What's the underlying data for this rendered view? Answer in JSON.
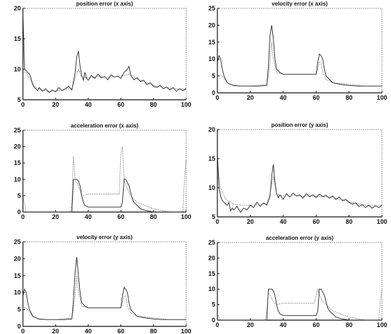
{
  "chart_data": [
    {
      "type": "line",
      "title": "position error  (x axis)",
      "xlim": [
        0,
        100
      ],
      "ylim": [
        5,
        20
      ],
      "xticks": [
        "0",
        "20",
        "40",
        "60",
        "80",
        "100"
      ],
      "yticks": [
        "5",
        "10",
        "15",
        "20"
      ],
      "series": [
        {
          "style": "solid",
          "color": "#222222",
          "x": [
            0,
            1,
            2,
            3,
            4,
            5,
            6,
            7,
            8,
            9,
            10,
            12,
            14,
            16,
            18,
            20,
            22,
            24,
            26,
            28,
            30,
            31,
            32,
            33,
            34,
            35,
            36,
            37,
            38,
            39,
            40,
            42,
            44,
            46,
            48,
            50,
            52,
            54,
            56,
            58,
            60,
            62,
            64,
            65,
            66,
            68,
            70,
            72,
            74,
            76,
            78,
            80,
            82,
            84,
            86,
            88,
            90,
            92,
            94,
            96,
            98,
            100
          ],
          "y": [
            19,
            10,
            9.8,
            9.5,
            9.2,
            8.5,
            7.5,
            7,
            6.8,
            6.5,
            7,
            6.4,
            6.8,
            6.2,
            6.6,
            6.3,
            7,
            6.5,
            6.8,
            7.2,
            6.6,
            8,
            9.5,
            12,
            13,
            10.5,
            9,
            8.2,
            9.5,
            8.5,
            8.2,
            9,
            8.5,
            9.2,
            8.6,
            8.8,
            8.3,
            9.1,
            8.7,
            8.9,
            8.5,
            9.5,
            10,
            10.5,
            9,
            8.3,
            8.6,
            8,
            8.2,
            7.5,
            7.8,
            7.2,
            7,
            7.4,
            6.8,
            7.1,
            6.6,
            7,
            6.4,
            6.8,
            6.5,
            6.8
          ]
        },
        {
          "style": "dotted",
          "color": "#444444",
          "x": [
            0,
            2,
            5,
            8,
            12,
            16,
            20,
            24,
            28,
            30,
            32,
            34,
            36,
            40,
            46,
            52,
            58,
            62,
            66,
            70,
            76,
            82,
            88,
            94,
            100
          ],
          "y": [
            9.5,
            9.5,
            8,
            7,
            6.6,
            6.4,
            6.5,
            6.6,
            6.8,
            6.8,
            8.5,
            10,
            8.8,
            8.6,
            8.8,
            8.7,
            8.8,
            9,
            9.2,
            8.4,
            7.8,
            7.2,
            7,
            6.8,
            6.8
          ]
        }
      ]
    },
    {
      "type": "line",
      "title": "velocity error  (x axis)",
      "xlim": [
        0,
        100
      ],
      "ylim": [
        0,
        25
      ],
      "xticks": [
        "0",
        "20",
        "40",
        "60",
        "80",
        "100"
      ],
      "yticks": [
        "0",
        "5",
        "10",
        "15",
        "20",
        "25"
      ],
      "series": [
        {
          "style": "solid",
          "color": "#222222",
          "x": [
            0,
            1,
            2,
            3,
            4,
            5,
            6,
            8,
            10,
            15,
            20,
            25,
            30,
            31,
            32,
            33,
            34,
            35,
            36,
            38,
            40,
            45,
            50,
            55,
            60,
            61,
            62,
            63,
            64,
            65,
            66,
            68,
            70,
            75,
            80,
            85,
            90,
            95,
            100
          ],
          "y": [
            9,
            11,
            10,
            7,
            5,
            4,
            3,
            2.5,
            2.2,
            2,
            2,
            2,
            2.2,
            8,
            17,
            20,
            16,
            10,
            7,
            6,
            5.5,
            5.5,
            5.5,
            5.5,
            5.5,
            9,
            11.5,
            11,
            10,
            7,
            5,
            4,
            3,
            2.5,
            2.2,
            2,
            2,
            2,
            2
          ]
        },
        {
          "style": "dotted",
          "color": "#444444",
          "x": [
            0,
            3,
            6,
            10,
            20,
            30,
            31,
            32,
            33,
            34,
            36,
            40,
            50,
            60,
            61,
            62,
            63,
            64,
            66,
            70,
            80,
            90,
            100
          ],
          "y": [
            5,
            5,
            3,
            2,
            2,
            2.5,
            5,
            9,
            15,
            10,
            6,
            5.5,
            5.5,
            5.5,
            7,
            9,
            9,
            6,
            4,
            3,
            2.5,
            2,
            2
          ]
        }
      ]
    },
    {
      "type": "line",
      "title": "acceleration error  (x axis)",
      "xlim": [
        0,
        100
      ],
      "ylim": [
        0,
        25
      ],
      "xticks": [
        "0",
        "20",
        "40",
        "60",
        "80",
        "100"
      ],
      "yticks": [
        "0",
        "5",
        "10",
        "15",
        "20",
        "25"
      ],
      "series": [
        {
          "style": "solid",
          "color": "#222222",
          "x": [
            0,
            10,
            20,
            29,
            30,
            31,
            32,
            33,
            34,
            35,
            36,
            37,
            38,
            40,
            45,
            50,
            55,
            59,
            60,
            61,
            62,
            63,
            64,
            65,
            66,
            67,
            68,
            70,
            72,
            75,
            80,
            90,
            99,
            100
          ],
          "y": [
            0,
            0,
            0,
            0,
            0,
            10,
            10,
            10,
            9.5,
            8,
            5,
            3,
            2,
            1.5,
            1.5,
            1.5,
            1.5,
            1.5,
            1.5,
            3,
            10,
            10,
            9,
            8,
            6,
            4,
            3,
            2,
            1,
            0.5,
            0,
            0,
            0,
            0
          ]
        },
        {
          "style": "dotted",
          "color": "#444444",
          "x": [
            0,
            2,
            10,
            20,
            29,
            30,
            31,
            32,
            34,
            36,
            40,
            50,
            59,
            60,
            61,
            62,
            64,
            66,
            70,
            80,
            90,
            98,
            99,
            100
          ],
          "y": [
            5,
            0,
            0,
            0,
            0,
            3,
            17,
            10,
            8,
            5,
            5.5,
            5.5,
            5.5,
            18,
            20,
            10,
            7,
            5,
            3,
            1,
            0,
            0,
            10,
            16
          ]
        }
      ]
    },
    {
      "type": "line",
      "title": "position error  (y axis)",
      "xlim": [
        0,
        100
      ],
      "ylim": [
        5,
        20
      ],
      "xticks": [
        "0",
        "20",
        "40",
        "60",
        "80",
        "100"
      ],
      "yticks": [
        "5",
        "10",
        "15",
        "20"
      ],
      "series": [
        {
          "style": "solid",
          "color": "#222222",
          "x": [
            0,
            1,
            2,
            3,
            4,
            5,
            6,
            7,
            8,
            9,
            10,
            12,
            14,
            16,
            18,
            20,
            22,
            24,
            26,
            28,
            30,
            32,
            33,
            34,
            35,
            36,
            37,
            38,
            40,
            42,
            44,
            46,
            48,
            50,
            52,
            54,
            56,
            58,
            60,
            62,
            64,
            66,
            68,
            70,
            72,
            74,
            76,
            78,
            80,
            82,
            84,
            86,
            88,
            90,
            92,
            94,
            96,
            98,
            100
          ],
          "y": [
            16,
            10,
            8.5,
            7.8,
            7.5,
            7.2,
            7,
            7.5,
            6,
            6.5,
            6.2,
            6.8,
            5.8,
            6.5,
            6.2,
            7,
            6.6,
            7.5,
            6.8,
            7.4,
            7,
            8.5,
            12,
            14,
            11,
            9,
            8.3,
            8.8,
            8,
            9,
            8.4,
            9.1,
            8.6,
            8.8,
            8.2,
            9,
            8.5,
            8.8,
            8.3,
            8.9,
            8.5,
            8.7,
            8.2,
            8.6,
            8,
            8.4,
            7.8,
            8,
            7.5,
            7.2,
            7.4,
            6.8,
            7.1,
            6.6,
            7,
            6.5,
            6.9,
            6.6,
            7
          ]
        },
        {
          "style": "dotted",
          "color": "#444444",
          "x": [
            0,
            2,
            5,
            10,
            15,
            20,
            25,
            30,
            32,
            34,
            36,
            40,
            50,
            60,
            70,
            80,
            90,
            100
          ],
          "y": [
            14,
            10,
            8,
            7.2,
            7,
            7,
            7.1,
            7.3,
            9,
            12,
            9,
            8.6,
            8.6,
            8.5,
            8.4,
            7.6,
            7,
            7
          ]
        }
      ]
    },
    {
      "type": "line",
      "title": "velocity error  (y axis)",
      "xlim": [
        0,
        100
      ],
      "ylim": [
        0,
        25
      ],
      "xticks": [
        "0",
        "20",
        "40",
        "60",
        "80",
        "100"
      ],
      "yticks": [
        "0",
        "5",
        "10",
        "15",
        "20",
        "25"
      ],
      "series": [
        {
          "style": "solid",
          "color": "#222222",
          "x": [
            0,
            1,
            2,
            3,
            4,
            5,
            6,
            8,
            10,
            15,
            20,
            25,
            30,
            31,
            32,
            33,
            34,
            35,
            36,
            38,
            40,
            45,
            50,
            55,
            60,
            61,
            62,
            63,
            64,
            65,
            66,
            68,
            70,
            75,
            80,
            85,
            90,
            95,
            100
          ],
          "y": [
            9,
            11,
            10,
            7,
            5,
            4,
            3,
            2.5,
            2.2,
            2,
            2,
            2,
            2.2,
            8,
            16,
            20.5,
            15,
            10,
            7,
            6,
            5.5,
            5.5,
            5.5,
            5.5,
            5.5,
            9,
            11.5,
            11,
            10,
            7,
            5,
            4,
            3,
            2.5,
            2.2,
            2,
            2,
            2,
            2
          ]
        },
        {
          "style": "dotted",
          "color": "#444444",
          "x": [
            0,
            3,
            6,
            10,
            20,
            30,
            31,
            32,
            33,
            34,
            36,
            40,
            50,
            60,
            61,
            62,
            63,
            64,
            66,
            70,
            80,
            90,
            100
          ],
          "y": [
            6,
            5,
            3,
            2,
            2,
            2.5,
            5,
            9,
            15,
            10,
            6,
            5.5,
            5.5,
            5.5,
            7,
            9,
            9,
            6,
            4,
            3,
            2.5,
            2,
            2
          ]
        }
      ]
    },
    {
      "type": "line",
      "title": "acceleration error  (y axis)",
      "xlim": [
        0,
        100
      ],
      "ylim": [
        0,
        25
      ],
      "xticks": [
        "0",
        "20",
        "40",
        "60",
        "80",
        "100"
      ],
      "yticks": [
        "0",
        "5",
        "10",
        "15",
        "20",
        "25"
      ],
      "series": [
        {
          "style": "solid",
          "color": "#222222",
          "x": [
            0,
            10,
            20,
            29,
            30,
            31,
            32,
            33,
            34,
            35,
            36,
            37,
            38,
            40,
            45,
            50,
            55,
            59,
            60,
            61,
            62,
            63,
            64,
            65,
            66,
            67,
            68,
            70,
            72,
            75,
            80,
            90,
            99,
            100
          ],
          "y": [
            0,
            0,
            0,
            0,
            0,
            10,
            10,
            10,
            9.5,
            8,
            5,
            3,
            2,
            1.5,
            1.5,
            1.5,
            1.5,
            1.5,
            1.5,
            3,
            10,
            10,
            9,
            8,
            6,
            4,
            3,
            2,
            1,
            0.5,
            0,
            0,
            0,
            0
          ]
        },
        {
          "style": "dotted",
          "color": "#444444",
          "x": [
            0,
            2,
            10,
            20,
            29,
            30,
            31,
            32,
            34,
            36,
            40,
            50,
            59,
            60,
            61,
            62,
            64,
            66,
            70,
            80,
            90,
            98,
            99,
            100
          ],
          "y": [
            2,
            0,
            0,
            0,
            0,
            3,
            9,
            8,
            6,
            5,
            5.5,
            5.5,
            5.5,
            8,
            10,
            8,
            6,
            5,
            3,
            1,
            0,
            0,
            6,
            10
          ]
        }
      ]
    }
  ]
}
